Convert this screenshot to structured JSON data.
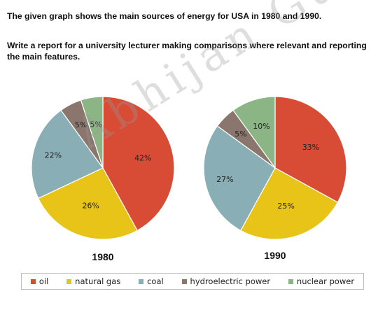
{
  "prompt": {
    "line1": "The given graph shows the main sources of energy for USA in 1980 and 1990.",
    "line2": "Write a report for a university lecturer making comparisons where relevant and reporting the main features."
  },
  "watermark": "Abhijan Gupta",
  "colors": {
    "oil": "#d84c36",
    "natural gas": "#e8c418",
    "coal": "#8aaeb6",
    "hydroelectric power": "#8a766c",
    "nuclear power": "#8cb585"
  },
  "chart_data": [
    {
      "type": "pie",
      "label": "1980",
      "slices": [
        {
          "name": "oil",
          "value": 42,
          "label": "42%"
        },
        {
          "name": "natural gas",
          "value": 26,
          "label": "26%"
        },
        {
          "name": "coal",
          "value": 22,
          "label": "22%"
        },
        {
          "name": "hydroelectric power",
          "value": 5,
          "label": "5%"
        },
        {
          "name": "nuclear power",
          "value": 5,
          "label": "5%"
        }
      ]
    },
    {
      "type": "pie",
      "label": "1990",
      "slices": [
        {
          "name": "oil",
          "value": 33,
          "label": "33%"
        },
        {
          "name": "natural gas",
          "value": 25,
          "label": "25%"
        },
        {
          "name": "coal",
          "value": 27,
          "label": "27%"
        },
        {
          "name": "hydroelectric power",
          "value": 5,
          "label": "5%"
        },
        {
          "name": "nuclear power",
          "value": 10,
          "label": "10%"
        }
      ]
    }
  ],
  "legend": [
    {
      "key": "oil",
      "label": "oil"
    },
    {
      "key": "natural gas",
      "label": "natural gas"
    },
    {
      "key": "coal",
      "label": "coal"
    },
    {
      "key": "hydroelectric power",
      "label": "hydroelectric power"
    },
    {
      "key": "nuclear power",
      "label": "nuclear power"
    }
  ]
}
